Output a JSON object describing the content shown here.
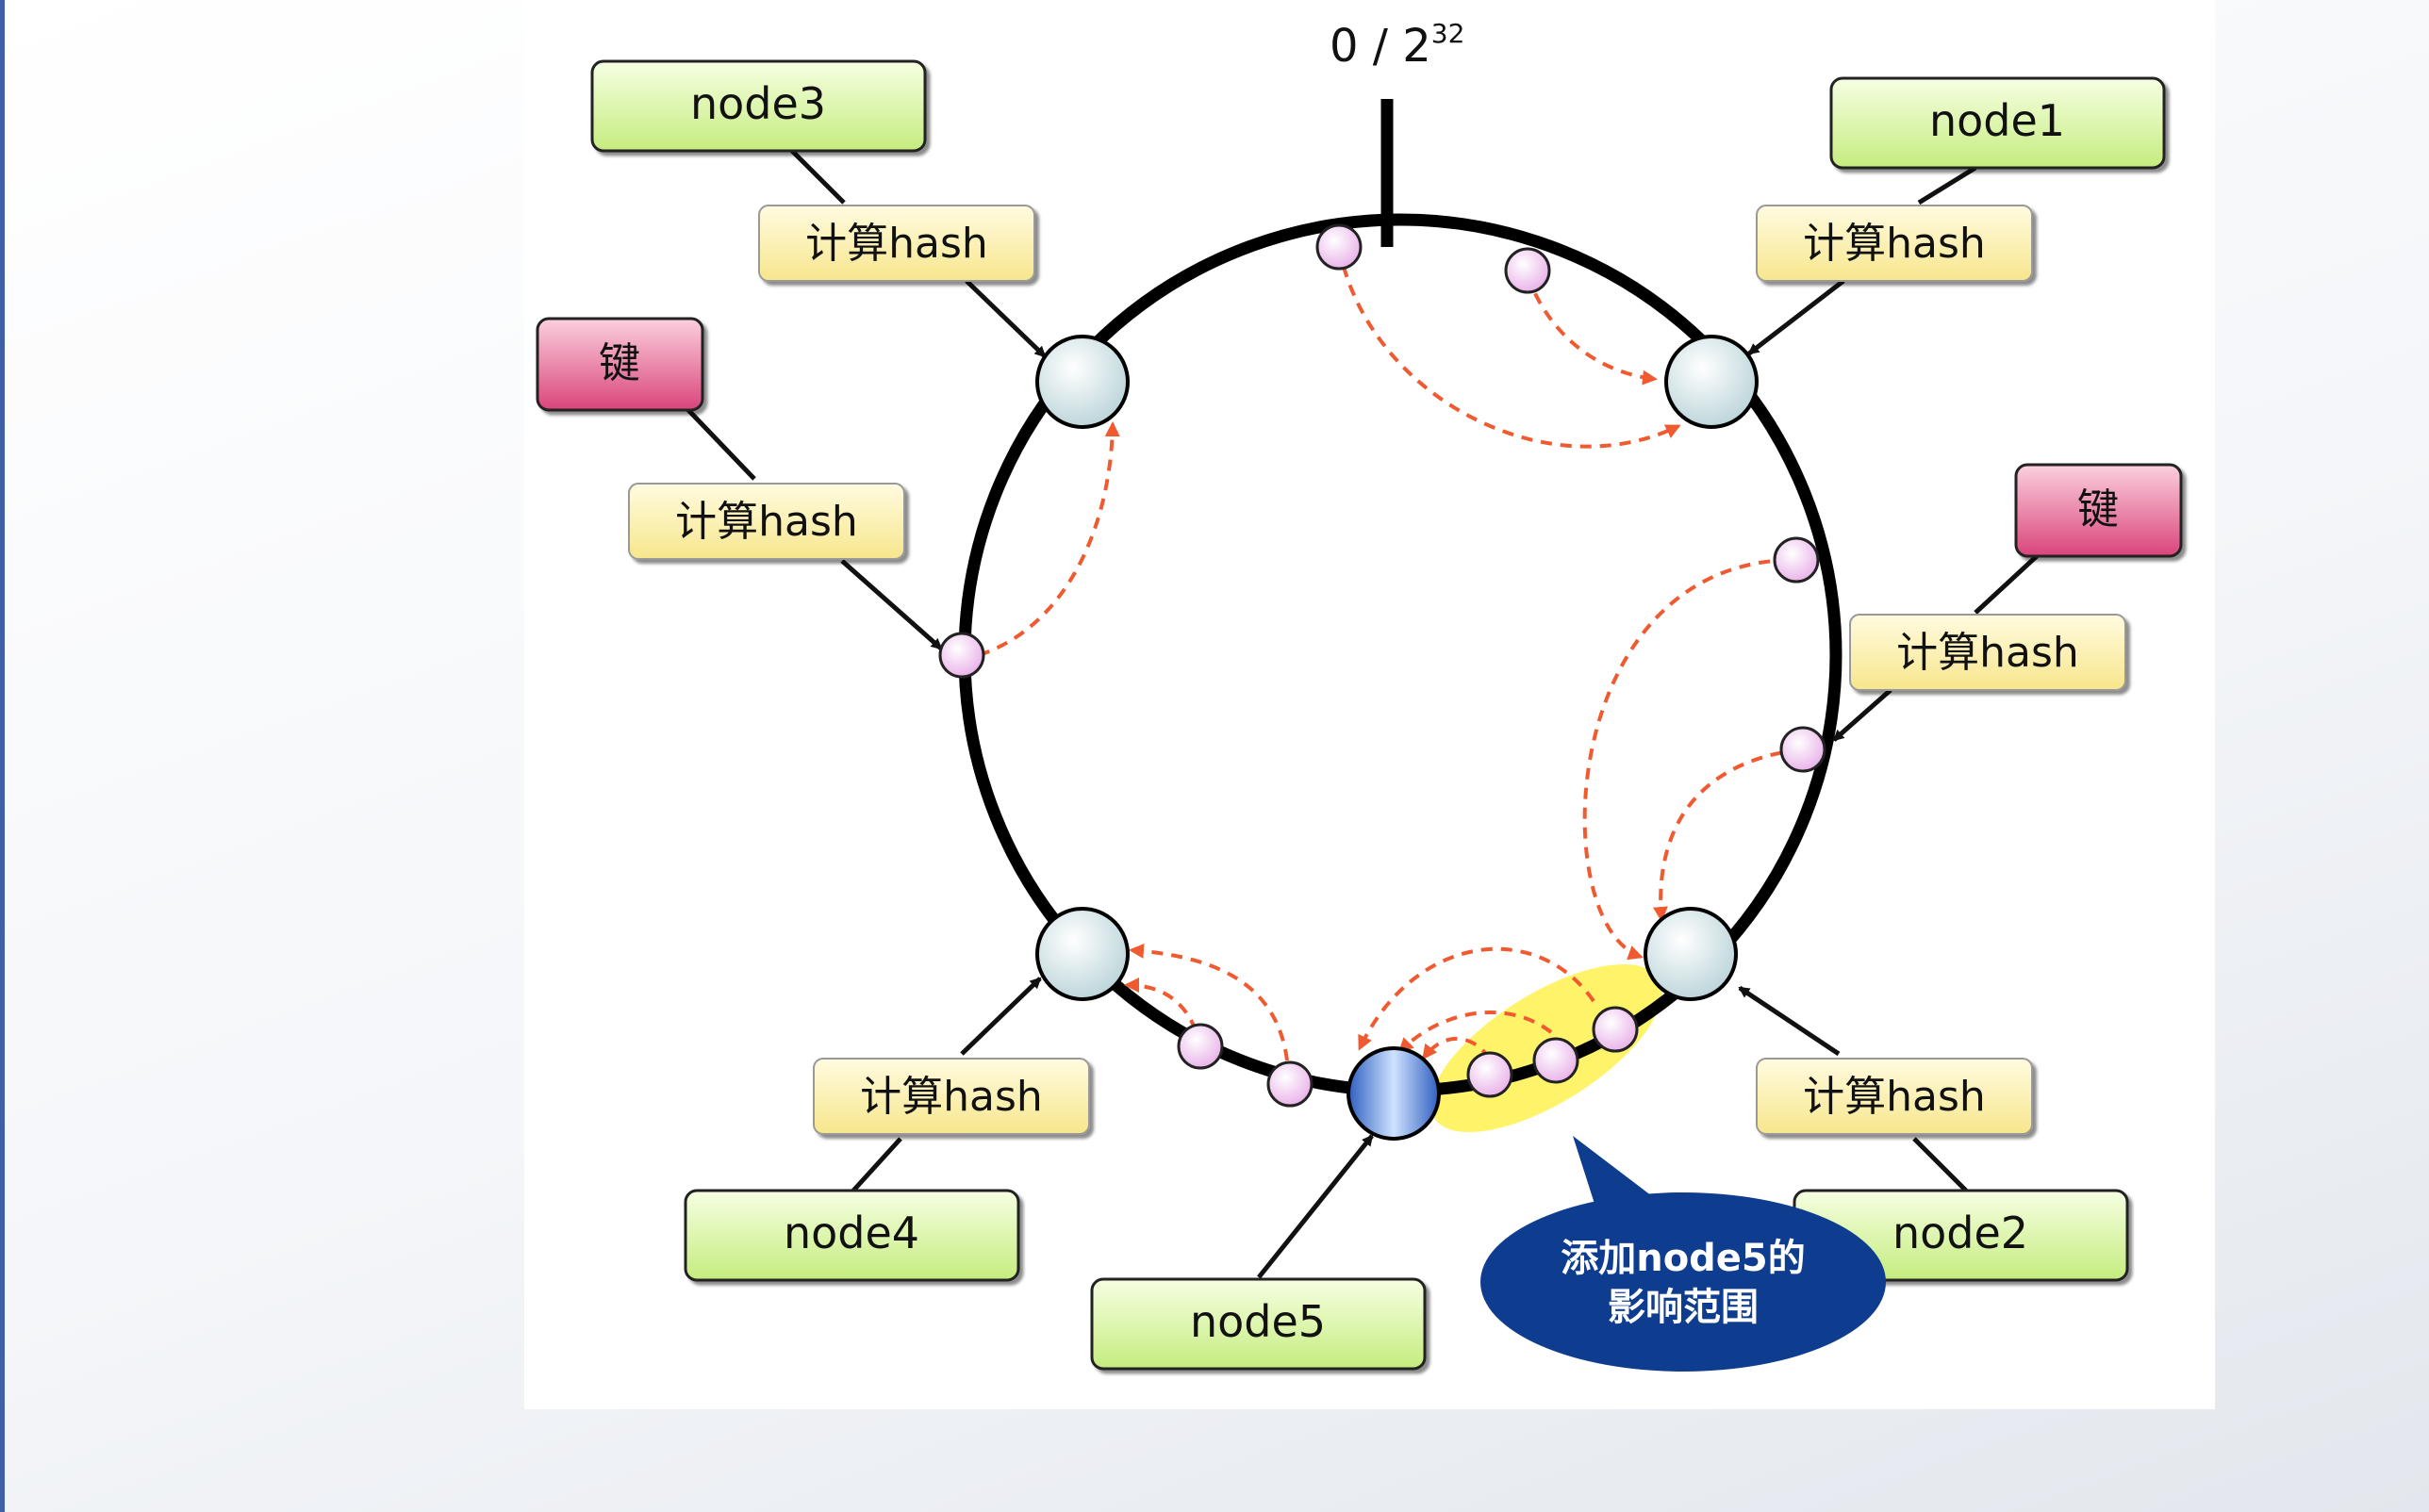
{
  "top_label": {
    "base": "0 / 2",
    "exponent": "32"
  },
  "nodes": [
    {
      "id": "node1",
      "label": "node1"
    },
    {
      "id": "node2",
      "label": "node2"
    },
    {
      "id": "node3",
      "label": "node3"
    },
    {
      "id": "node4",
      "label": "node4"
    },
    {
      "id": "node5",
      "label": "node5"
    }
  ],
  "hash_label": "计算hash",
  "key_label": "键",
  "callout": {
    "line1": "添加node5的",
    "line2": "影响范围"
  },
  "colors": {
    "node_box": "#d8f5a0",
    "hash_box": "#fff3a8",
    "key_box": "#e0608e",
    "dashed_arrow": "#f05a30",
    "highlight": "#fff36a",
    "callout": "#0e3c8f",
    "new_node": "#5f95e6"
  }
}
